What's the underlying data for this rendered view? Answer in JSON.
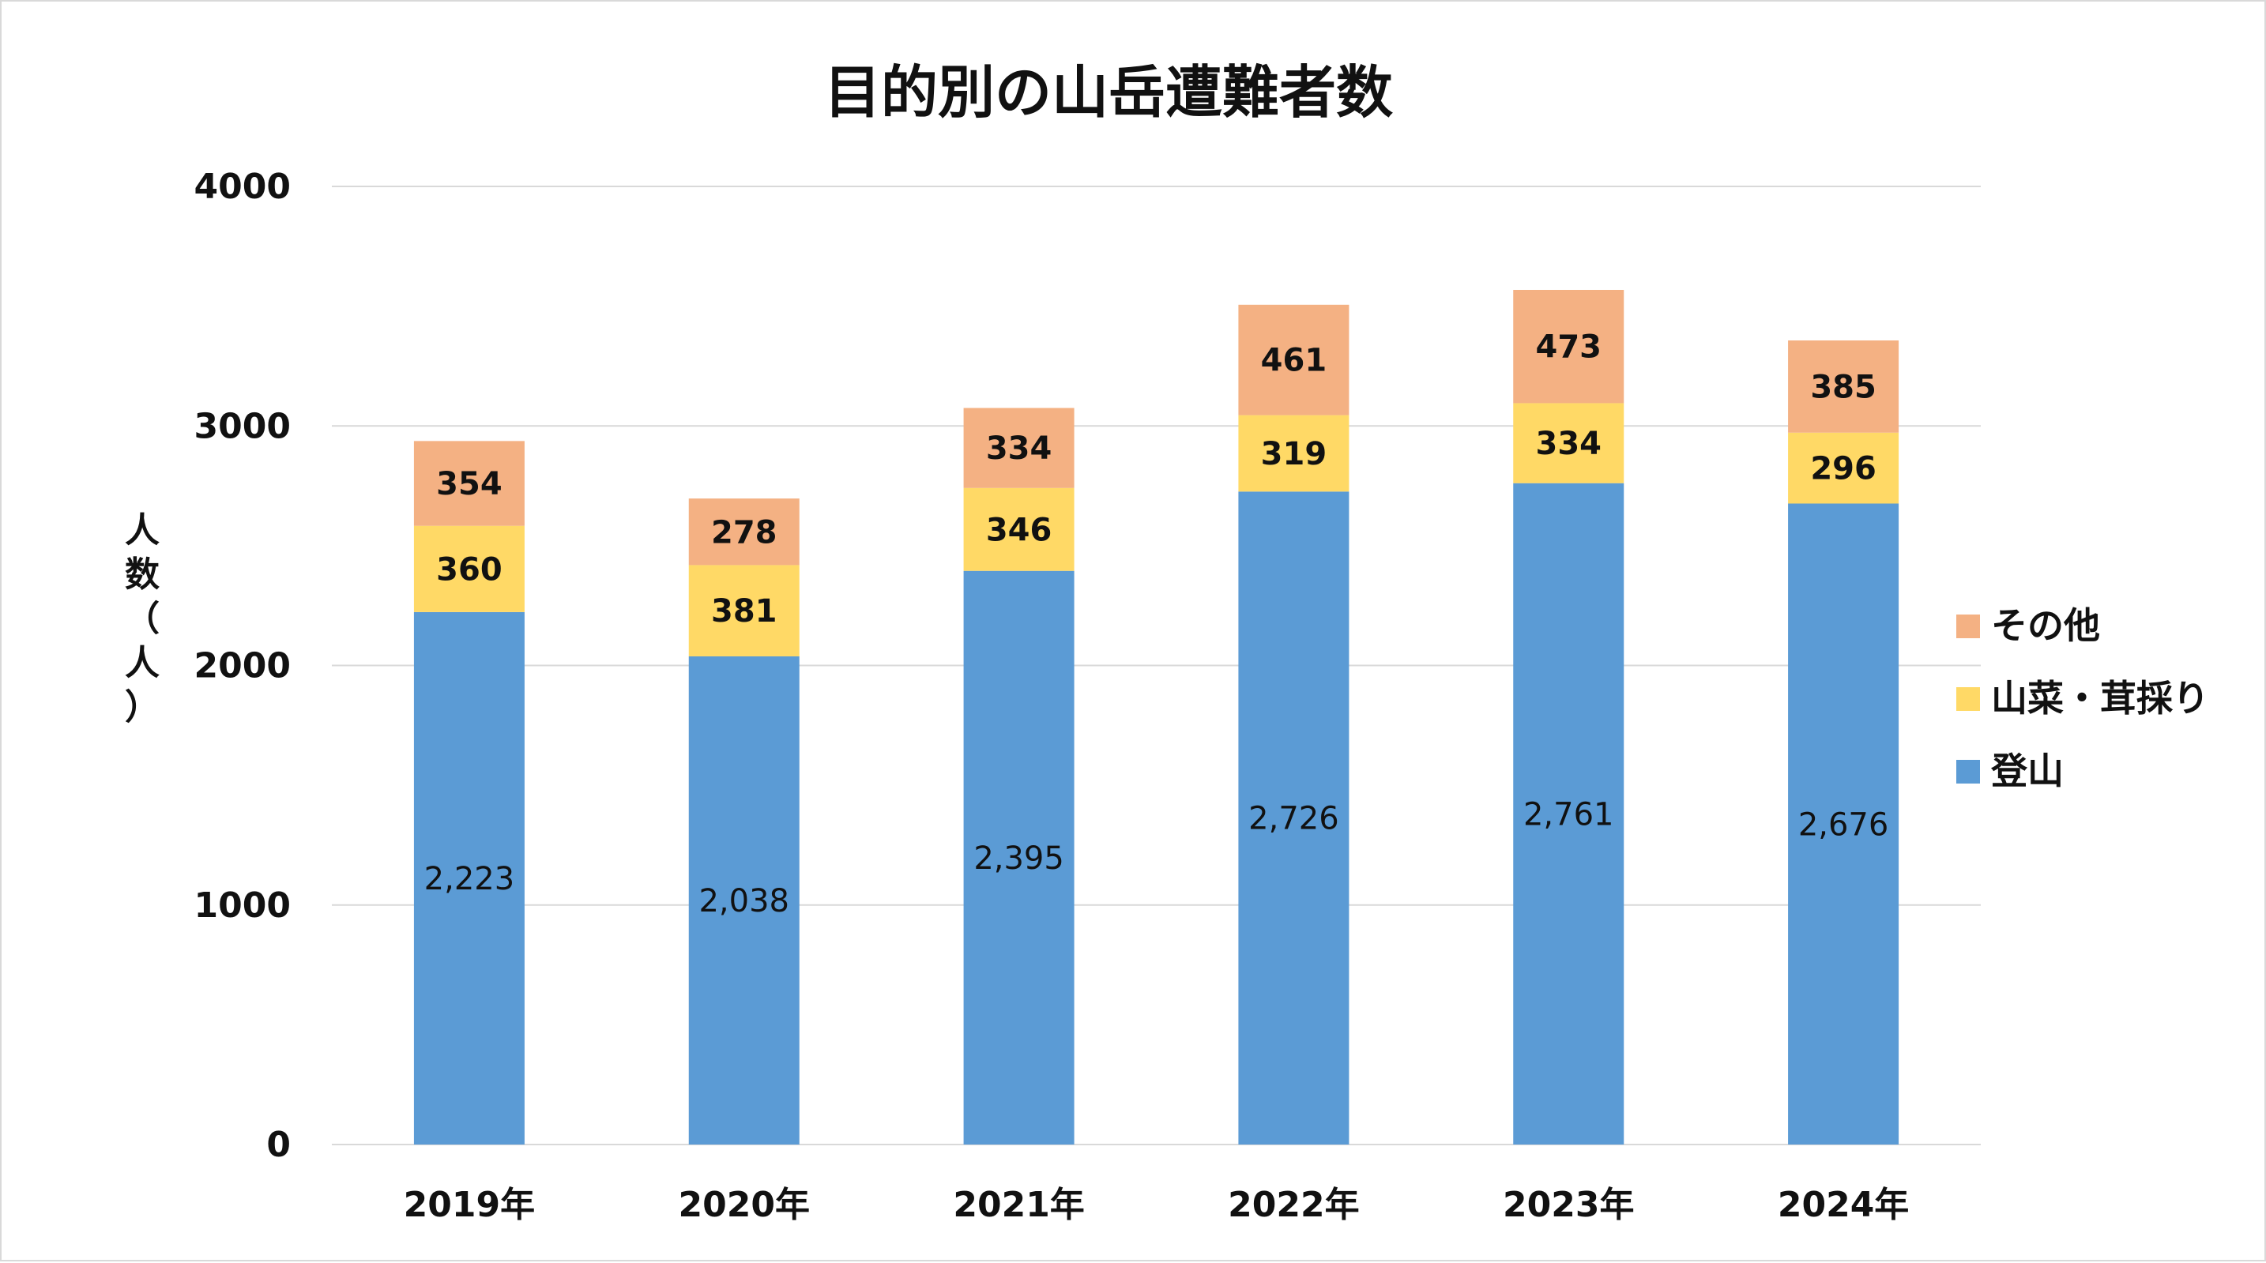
{
  "chart_data": {
    "type": "bar",
    "stacked": true,
    "title": "目的別の山岳遭難者数",
    "xlabel": "",
    "ylabel": "人数（人）",
    "ylim": [
      0,
      4000
    ],
    "yticks": [
      "0",
      "1000",
      "2000",
      "3000",
      "4000"
    ],
    "grid": true,
    "legend_position": "right",
    "categories": [
      "2019年",
      "2020年",
      "2021年",
      "2022年",
      "2023年",
      "2024年"
    ],
    "series": [
      {
        "name": "登山",
        "color": "#5b9bd5",
        "values": [
          2223,
          2038,
          2395,
          2726,
          2761,
          2676
        ],
        "labels": [
          "2,223",
          "2,038",
          "2,395",
          "2,726",
          "2,761",
          "2,676"
        ]
      },
      {
        "name": "山菜・茸採り",
        "color": "#ffd966",
        "values": [
          360,
          381,
          346,
          319,
          334,
          296
        ],
        "labels": [
          "360",
          "381",
          "346",
          "319",
          "334",
          "296"
        ]
      },
      {
        "name": "その他",
        "color": "#f4b183",
        "values": [
          354,
          278,
          334,
          461,
          473,
          385
        ],
        "labels": [
          "354",
          "278",
          "334",
          "461",
          "473",
          "385"
        ]
      }
    ]
  }
}
